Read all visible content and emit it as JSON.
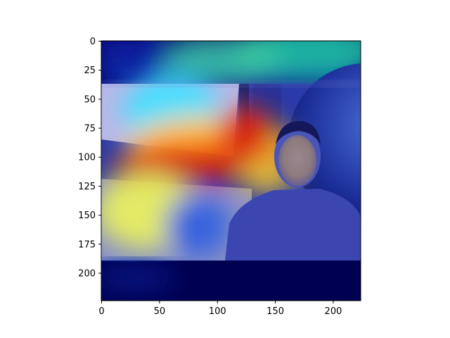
{
  "figure": {
    "x_axis": {
      "min": 0,
      "max": 224,
      "ticks": [
        0,
        50,
        100,
        150,
        200
      ]
    },
    "y_axis": {
      "min": 0,
      "max": 224,
      "inverted": true,
      "ticks": [
        0,
        25,
        50,
        75,
        100,
        125,
        150,
        175,
        200
      ]
    },
    "image": {
      "description_icon": "heatmap-overlay-photo",
      "colormap": "jet",
      "background_color": "#000060"
    }
  }
}
